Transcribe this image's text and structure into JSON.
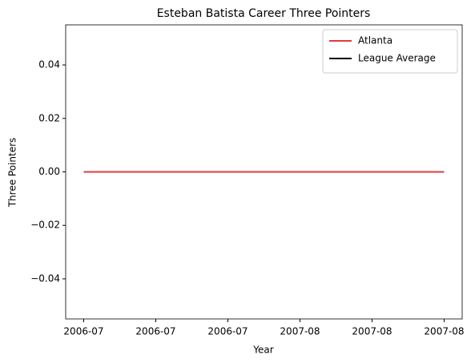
{
  "chart_data": {
    "type": "line",
    "title": "Esteban Batista Career Three Pointers",
    "xlabel": "Year",
    "ylabel": "Three Pointers",
    "x": [
      0,
      1
    ],
    "series": [
      {
        "name": "Atlanta",
        "color": "#e03a3e",
        "values": [
          0,
          0
        ]
      },
      {
        "name": "League Average",
        "color": "#000000",
        "values": [
          0,
          0
        ]
      }
    ],
    "xlim": [
      -0.05,
      1.05
    ],
    "xticks": [
      {
        "value": 0,
        "label": "2006-07"
      },
      {
        "value": 0.2,
        "label": "2006-07"
      },
      {
        "value": 0.4,
        "label": "2006-07"
      },
      {
        "value": 0.6,
        "label": "2007-08"
      },
      {
        "value": 0.8,
        "label": "2007-08"
      },
      {
        "value": 1,
        "label": "2007-08"
      }
    ],
    "ylim": [
      -0.055,
      0.055
    ],
    "yticks": [
      {
        "value": -0.04,
        "label": "−0.04"
      },
      {
        "value": -0.02,
        "label": "−0.02"
      },
      {
        "value": 0,
        "label": "0.00"
      },
      {
        "value": 0.02,
        "label": "0.02"
      },
      {
        "value": 0.04,
        "label": "0.04"
      }
    ],
    "legend": "upper right",
    "grid": false
  }
}
